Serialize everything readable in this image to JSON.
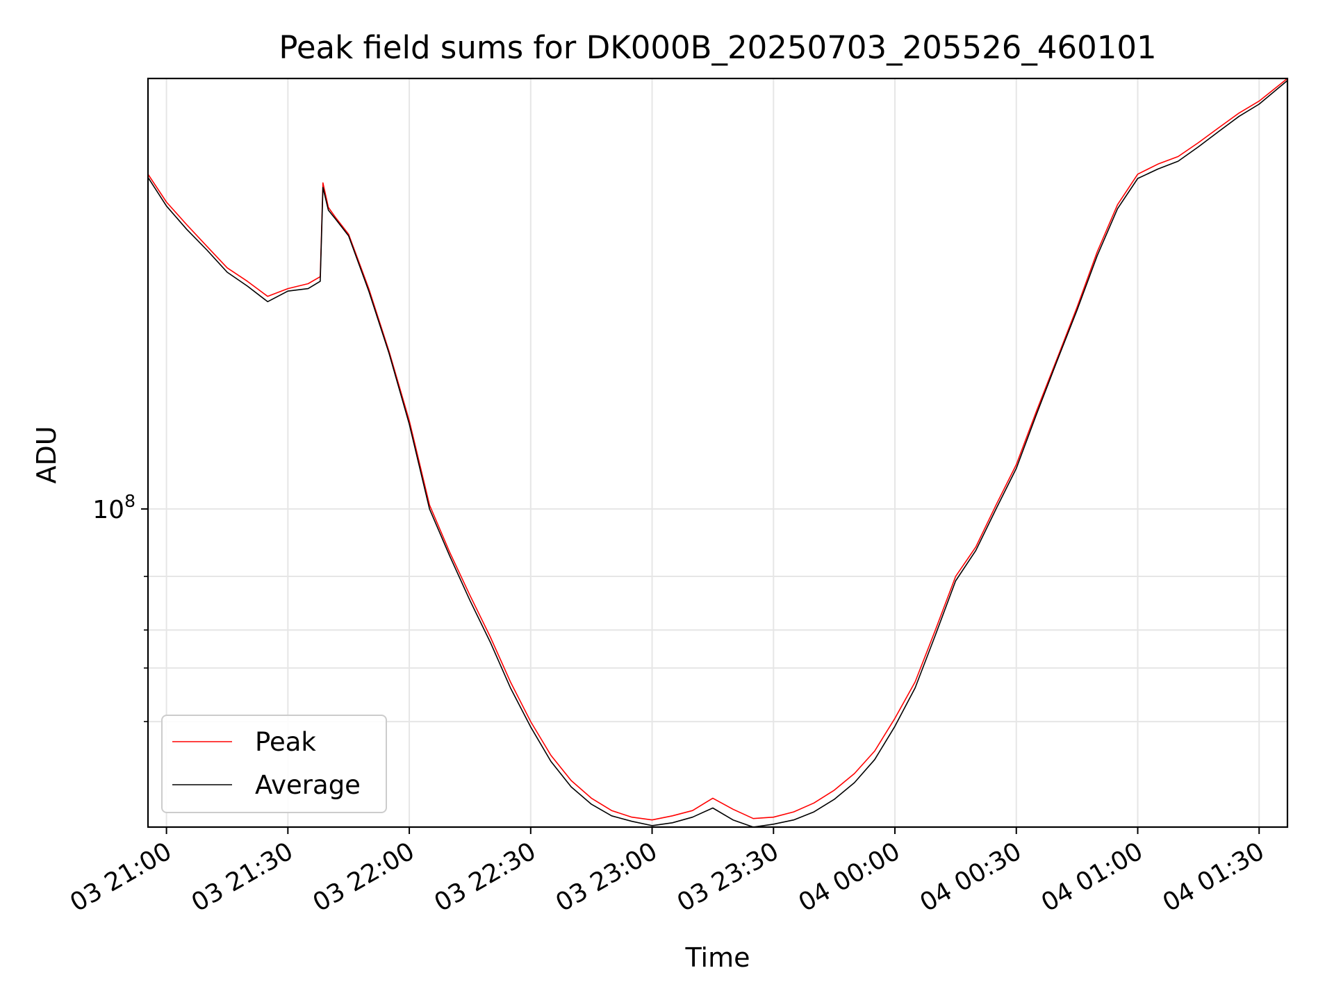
{
  "chart_data": {
    "type": "line",
    "title": "Peak field sums for DK000B_20250703_205526_460101",
    "xlabel": "Time",
    "ylabel": "ADU",
    "yscale": "log",
    "grid": true,
    "legend_placement": "lower-left",
    "xlim": [
      "2025-07-03 20:55:26",
      "2025-07-04 01:37:00"
    ],
    "ylim": [
      9000000.0,
      2600000000.0
    ],
    "x_ticks": [
      {
        "value": "2025-07-03 21:00",
        "label": "03 21:00"
      },
      {
        "value": "2025-07-03 21:30",
        "label": "03 21:30"
      },
      {
        "value": "2025-07-03 22:00",
        "label": "03 22:00"
      },
      {
        "value": "2025-07-03 22:30",
        "label": "03 22:30"
      },
      {
        "value": "2025-07-03 23:00",
        "label": "03 23:00"
      },
      {
        "value": "2025-07-03 23:30",
        "label": "03 23:30"
      },
      {
        "value": "2025-07-04 00:00",
        "label": "04 00:00"
      },
      {
        "value": "2025-07-04 00:30",
        "label": "04 00:30"
      },
      {
        "value": "2025-07-04 01:00",
        "label": "04 01:00"
      },
      {
        "value": "2025-07-04 01:30",
        "label": "04 01:30"
      }
    ],
    "y_ticks": [
      {
        "value": 100000000,
        "base": "10",
        "exp": "8"
      }
    ],
    "y_minor_ticks": [
      20000000,
      30000000,
      40000000,
      60000000
    ],
    "series": [
      {
        "name": "Peak",
        "color": "#ff0000",
        "x": [
          "2025-07-03 20:55:26",
          "2025-07-03 21:00",
          "2025-07-03 21:05",
          "2025-07-03 21:10",
          "2025-07-03 21:15",
          "2025-07-03 21:20",
          "2025-07-03 21:25",
          "2025-07-03 21:30",
          "2025-07-03 21:35",
          "2025-07-03 21:38",
          "2025-07-03 21:38:40",
          "2025-07-03 21:40",
          "2025-07-03 21:42",
          "2025-07-03 21:45",
          "2025-07-03 21:50",
          "2025-07-03 21:55",
          "2025-07-03 22:00",
          "2025-07-03 22:05",
          "2025-07-03 22:10",
          "2025-07-03 22:15",
          "2025-07-03 22:20",
          "2025-07-03 22:25",
          "2025-07-03 22:30",
          "2025-07-03 22:35",
          "2025-07-03 22:40",
          "2025-07-03 22:45",
          "2025-07-03 22:50",
          "2025-07-03 22:55",
          "2025-07-03 23:00",
          "2025-07-03 23:05",
          "2025-07-03 23:10",
          "2025-07-03 23:15",
          "2025-07-03 23:20",
          "2025-07-03 23:25",
          "2025-07-03 23:30",
          "2025-07-03 23:35",
          "2025-07-03 23:40",
          "2025-07-03 23:45",
          "2025-07-03 23:50",
          "2025-07-03 23:55",
          "2025-07-04 00:00",
          "2025-07-04 00:05",
          "2025-07-04 00:10",
          "2025-07-04 00:15",
          "2025-07-04 00:20",
          "2025-07-04 00:25",
          "2025-07-04 00:30",
          "2025-07-04 00:35",
          "2025-07-04 00:40",
          "2025-07-04 00:45",
          "2025-07-04 00:50",
          "2025-07-04 00:55",
          "2025-07-04 01:00",
          "2025-07-04 01:05",
          "2025-07-04 01:10",
          "2025-07-04 01:15",
          "2025-07-04 01:20",
          "2025-07-04 01:25",
          "2025-07-04 01:30",
          "2025-07-04 01:37"
        ],
        "y": [
          1260000000,
          1020000000,
          860000000,
          730000000,
          620000000,
          560000000,
          500000000,
          530000000,
          550000000,
          580000000,
          1180000000,
          980000000,
          900000000,
          800000000,
          530000000,
          330000000,
          195000000,
          103000000,
          72000000,
          52000000,
          38000000,
          27000000,
          20000000,
          15500000,
          12800000,
          11200000,
          10200000,
          9700000,
          9500000,
          9800000,
          10200000,
          11200000,
          10300000,
          9600000,
          9700000,
          10100000,
          10800000,
          11900000,
          13500000,
          16000000,
          20500000,
          27000000,
          40000000,
          60000000,
          75000000,
          103000000,
          140000000,
          210000000,
          310000000,
          460000000,
          700000000,
          1000000000,
          1260000000,
          1360000000,
          1440000000,
          1600000000,
          1790000000,
          2000000000,
          2190000000,
          2600000000
        ]
      },
      {
        "name": "Average",
        "color": "#000000",
        "x": [
          "2025-07-03 20:55:26",
          "2025-07-03 21:00",
          "2025-07-03 21:05",
          "2025-07-03 21:10",
          "2025-07-03 21:15",
          "2025-07-03 21:20",
          "2025-07-03 21:25",
          "2025-07-03 21:30",
          "2025-07-03 21:35",
          "2025-07-03 21:38",
          "2025-07-03 21:38:40",
          "2025-07-03 21:40",
          "2025-07-03 21:42",
          "2025-07-03 21:45",
          "2025-07-03 21:50",
          "2025-07-03 21:55",
          "2025-07-03 22:00",
          "2025-07-03 22:05",
          "2025-07-03 22:10",
          "2025-07-03 22:15",
          "2025-07-03 22:20",
          "2025-07-03 22:25",
          "2025-07-03 22:30",
          "2025-07-03 22:35",
          "2025-07-03 22:40",
          "2025-07-03 22:45",
          "2025-07-03 22:50",
          "2025-07-03 22:55",
          "2025-07-03 23:00",
          "2025-07-03 23:05",
          "2025-07-03 23:10",
          "2025-07-03 23:15",
          "2025-07-03 23:20",
          "2025-07-03 23:25",
          "2025-07-03 23:30",
          "2025-07-03 23:35",
          "2025-07-03 23:40",
          "2025-07-03 23:45",
          "2025-07-03 23:50",
          "2025-07-03 23:55",
          "2025-07-04 00:00",
          "2025-07-04 00:05",
          "2025-07-04 00:10",
          "2025-07-04 00:15",
          "2025-07-04 00:20",
          "2025-07-04 00:25",
          "2025-07-04 00:30",
          "2025-07-04 00:35",
          "2025-07-04 00:40",
          "2025-07-04 00:45",
          "2025-07-04 00:50",
          "2025-07-04 00:55",
          "2025-07-04 01:00",
          "2025-07-04 01:05",
          "2025-07-04 01:10",
          "2025-07-04 01:15",
          "2025-07-04 01:20",
          "2025-07-04 01:25",
          "2025-07-04 01:30",
          "2025-07-04 01:37"
        ],
        "y": [
          1230000000,
          990000000,
          830000000,
          710000000,
          600000000,
          540000000,
          480000000,
          520000000,
          530000000,
          560000000,
          1140000000,
          960000000,
          890000000,
          790000000,
          520000000,
          325000000,
          190000000,
          100000000,
          70000000,
          50000000,
          36500000,
          25800000,
          19200000,
          14800000,
          12200000,
          10700000,
          9800000,
          9400000,
          9100000,
          9300000,
          9700000,
          10400000,
          9500000,
          9000000,
          9200000,
          9500000,
          10100000,
          11100000,
          12600000,
          15000000,
          19300000,
          25800000,
          38500000,
          58000000,
          73000000,
          100000000,
          136000000,
          205000000,
          305000000,
          450000000,
          680000000,
          970000000,
          1220000000,
          1310000000,
          1390000000,
          1550000000,
          1740000000,
          1950000000,
          2140000000,
          2560000000
        ]
      }
    ]
  }
}
